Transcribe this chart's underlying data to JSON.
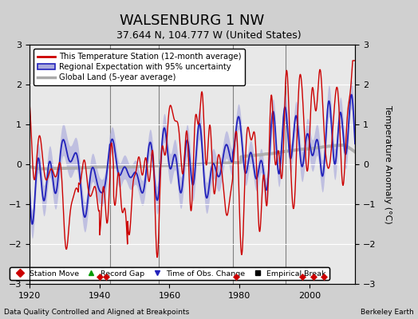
{
  "title": "WALSENBURG 1 NW",
  "subtitle": "37.644 N, 104.777 W (United States)",
  "ylabel": "Temperature Anomaly (°C)",
  "xlabel_left": "Data Quality Controlled and Aligned at Breakpoints",
  "xlabel_right": "Berkeley Earth",
  "xlim": [
    1920,
    2013
  ],
  "ylim": [
    -3,
    3
  ],
  "yticks": [
    -3,
    -2,
    -1,
    0,
    1,
    2,
    3
  ],
  "xticks": [
    1920,
    1940,
    1960,
    1980,
    2000
  ],
  "fig_bg_color": "#d0d0d0",
  "plot_bg_color": "#e8e8e8",
  "vertical_lines": [
    1943,
    1957,
    1978,
    1993
  ],
  "station_move_years": [
    1940,
    1942,
    1979,
    1998,
    2001,
    2004
  ],
  "legend_line1": "This Temperature Station (12-month average)",
  "legend_line2": "Regional Expectation with 95% uncertainty",
  "legend_line3": "Global Land (5-year average)",
  "legend_marker1": "Station Move",
  "legend_marker2": "Record Gap",
  "legend_marker3": "Time of Obs. Change",
  "legend_marker4": "Empirical Break",
  "red_color": "#cc0000",
  "blue_color": "#2222bb",
  "blue_fill_color": "#aaaadd",
  "gray_color": "#aaaaaa",
  "title_fontsize": 13,
  "subtitle_fontsize": 9,
  "tick_fontsize": 8,
  "ylabel_fontsize": 8
}
